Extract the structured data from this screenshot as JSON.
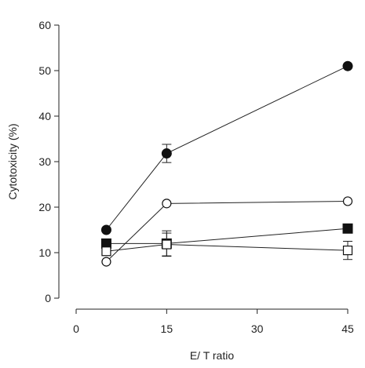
{
  "chart_data": {
    "type": "line",
    "xlabel": "E/ T ratio",
    "ylabel": "Cytotoxicity (%)",
    "xlim": [
      -5,
      45
    ],
    "ylim": [
      0,
      60
    ],
    "x_ticks": [
      0,
      15,
      30,
      45
    ],
    "y_ticks": [
      0,
      10,
      20,
      30,
      40,
      50,
      60
    ],
    "x_tick_labels": [
      "0",
      "15",
      "30",
      "45"
    ],
    "y_tick_labels": [
      "0",
      "10",
      "20",
      "30",
      "40",
      "50",
      "60"
    ],
    "grid": false,
    "series": [
      {
        "marker": "circle-filled",
        "x": [
          5,
          15,
          45
        ],
        "y": [
          15,
          31.8,
          51
        ],
        "err": [
          0,
          2,
          0
        ]
      },
      {
        "marker": "circle-open",
        "x": [
          5,
          15,
          45
        ],
        "y": [
          8,
          20.8,
          21.3
        ],
        "err": [
          0,
          0,
          0
        ]
      },
      {
        "marker": "square-filled",
        "x": [
          5,
          15,
          45
        ],
        "y": [
          12,
          12,
          15.3
        ],
        "err": [
          0,
          2.8,
          0
        ]
      },
      {
        "marker": "square-open",
        "x": [
          5,
          15,
          45
        ],
        "y": [
          10.3,
          11.8,
          10.5
        ],
        "err": [
          0,
          2.5,
          2
        ]
      }
    ]
  }
}
